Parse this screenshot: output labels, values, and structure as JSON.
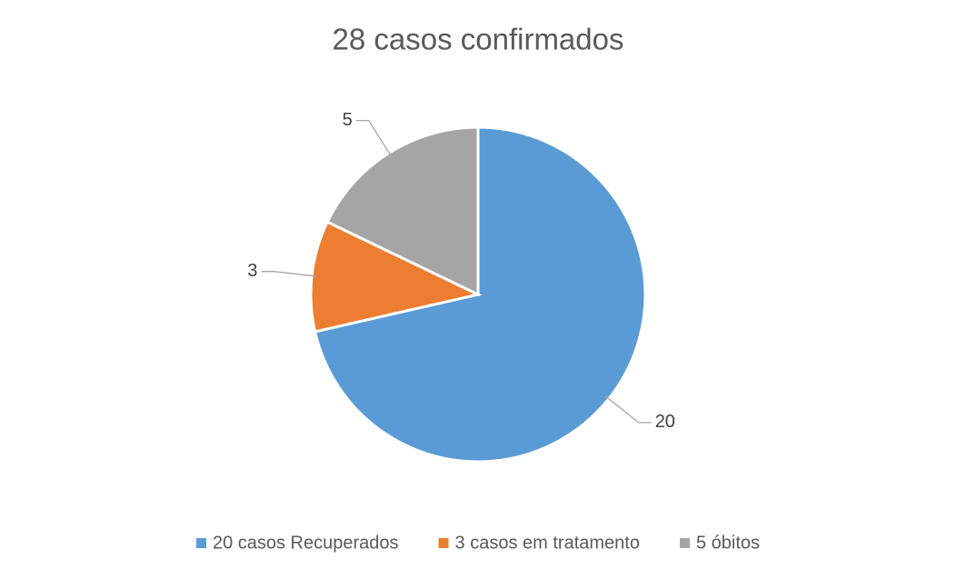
{
  "chart_data": {
    "type": "pie",
    "title": "28 casos confirmados",
    "categories": [
      "20 casos Recuperados",
      "3 casos em tratamento",
      "5 óbitos"
    ],
    "values": [
      20,
      3,
      5
    ],
    "colors": [
      "#5b9bd5",
      "#ed7d31",
      "#a5a5a5"
    ],
    "legend": "bottom"
  }
}
